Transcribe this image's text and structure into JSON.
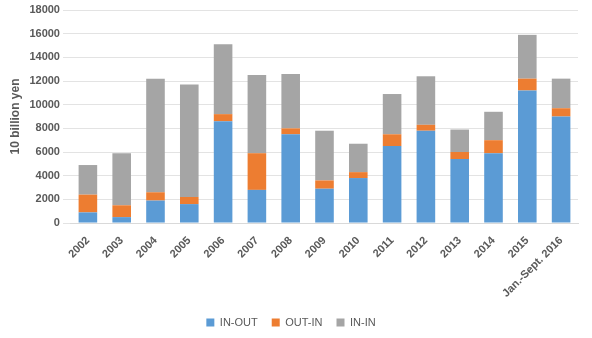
{
  "chart_data": {
    "type": "bar",
    "y_label": "10 billion yen",
    "categories": [
      "2002",
      "2003",
      "2004",
      "2005",
      "2006",
      "2007",
      "2008",
      "2009",
      "2010",
      "2011",
      "2012",
      "2013",
      "2014",
      "2015",
      "Jan.-Sept. 2016"
    ],
    "series": [
      {
        "name": "IN-OUT",
        "color": "#5b9bd5",
        "values": [
          900,
          500,
          1900,
          1600,
          8600,
          2800,
          7500,
          2900,
          3800,
          6500,
          7800,
          5400,
          5900,
          11200,
          9000
        ]
      },
      {
        "name": "OUT-IN",
        "color": "#ed7d31",
        "values": [
          1500,
          1000,
          700,
          600,
          600,
          3100,
          500,
          700,
          500,
          1000,
          500,
          600,
          1100,
          1000,
          700
        ]
      },
      {
        "name": "IN-IN",
        "color": "#a5a5a5",
        "values": [
          2500,
          4400,
          9600,
          9500,
          5900,
          6600,
          4600,
          4200,
          2400,
          3400,
          4100,
          1900,
          2400,
          3700,
          2500
        ]
      }
    ],
    "stacked": true,
    "ylim": [
      0,
      18000
    ],
    "yticks": [
      0,
      2000,
      4000,
      6000,
      8000,
      10000,
      12000,
      14000,
      16000,
      18000
    ],
    "grid": true,
    "legend": "bottom"
  }
}
